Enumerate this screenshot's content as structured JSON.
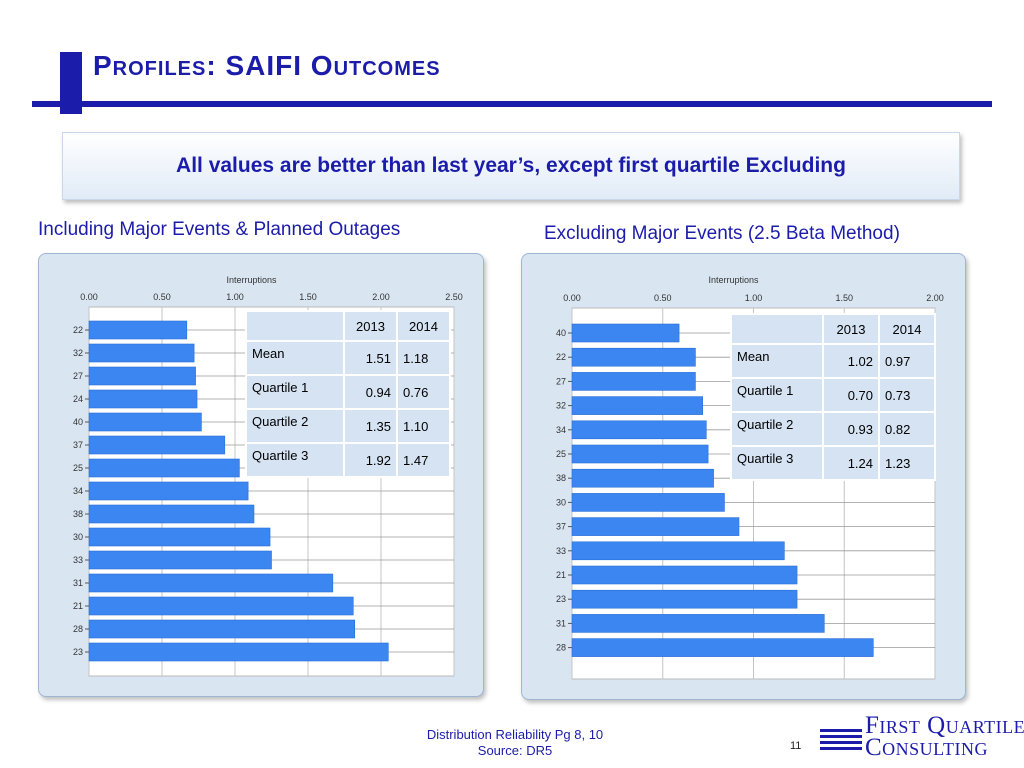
{
  "slide": {
    "title": "Profiles: SAIFI Outcomes",
    "banner": "All values are better than last year’s, except first quartile Excluding",
    "footer_line1": "Distribution Reliability Pg 8, 10",
    "footer_line2": "Source: DR5",
    "page_number": "11",
    "logo_line1": "First Quartile",
    "logo_line2": "Consulting",
    "accent_color": "#1c1caa",
    "bar_color": "#3b86f0"
  },
  "charts": [
    {
      "heading": "Including Major Events & Planned Outages",
      "table": {
        "headers": [
          "",
          "2013",
          "2014"
        ],
        "rows": [
          {
            "label": "Mean",
            "v2013": "1.51",
            "v2014": "1.18"
          },
          {
            "label": "Quartile 1",
            "v2013": "0.94",
            "v2014": "0.76"
          },
          {
            "label": "Quartile 2",
            "v2013": "1.35",
            "v2014": "1.10"
          },
          {
            "label": "Quartile 3",
            "v2013": "1.92",
            "v2014": "1.47"
          }
        ]
      }
    },
    {
      "heading": "Excluding Major Events (2.5 Beta Method)",
      "table": {
        "headers": [
          "",
          "2013",
          "2014"
        ],
        "rows": [
          {
            "label": "Mean",
            "v2013": "1.02",
            "v2014": "0.97"
          },
          {
            "label": "Quartile 1",
            "v2013": "0.70",
            "v2014": "0.73"
          },
          {
            "label": "Quartile 2",
            "v2013": "0.93",
            "v2014": "0.82"
          },
          {
            "label": "Quartile 3",
            "v2013": "1.24",
            "v2014": "1.23"
          }
        ]
      }
    }
  ],
  "chart_data": [
    {
      "type": "bar",
      "orientation": "horizontal",
      "xlabel": "Interruptions",
      "xlim": [
        0,
        2.5
      ],
      "ticks": [
        "0.00",
        "0.50",
        "1.00",
        "1.50",
        "2.00",
        "2.50"
      ],
      "categories": [
        "22",
        "32",
        "27",
        "24",
        "40",
        "37",
        "25",
        "34",
        "38",
        "30",
        "33",
        "31",
        "21",
        "28",
        "23"
      ],
      "values": [
        0.67,
        0.72,
        0.73,
        0.74,
        0.77,
        0.93,
        1.03,
        1.09,
        1.13,
        1.24,
        1.25,
        1.67,
        1.81,
        1.82,
        2.05
      ],
      "grid": true
    },
    {
      "type": "bar",
      "orientation": "horizontal",
      "xlabel": "Interruptions",
      "xlim": [
        0,
        2.0
      ],
      "ticks": [
        "0.00",
        "0.50",
        "1.00",
        "1.50",
        "2.00"
      ],
      "categories": [
        "40",
        "22",
        "27",
        "32",
        "34",
        "25",
        "38",
        "30",
        "37",
        "33",
        "21",
        "23",
        "31",
        "28"
      ],
      "values": [
        0.59,
        0.68,
        0.68,
        0.72,
        0.74,
        0.75,
        0.78,
        0.84,
        0.92,
        1.17,
        1.24,
        1.24,
        1.39,
        1.66
      ],
      "grid": true
    }
  ]
}
